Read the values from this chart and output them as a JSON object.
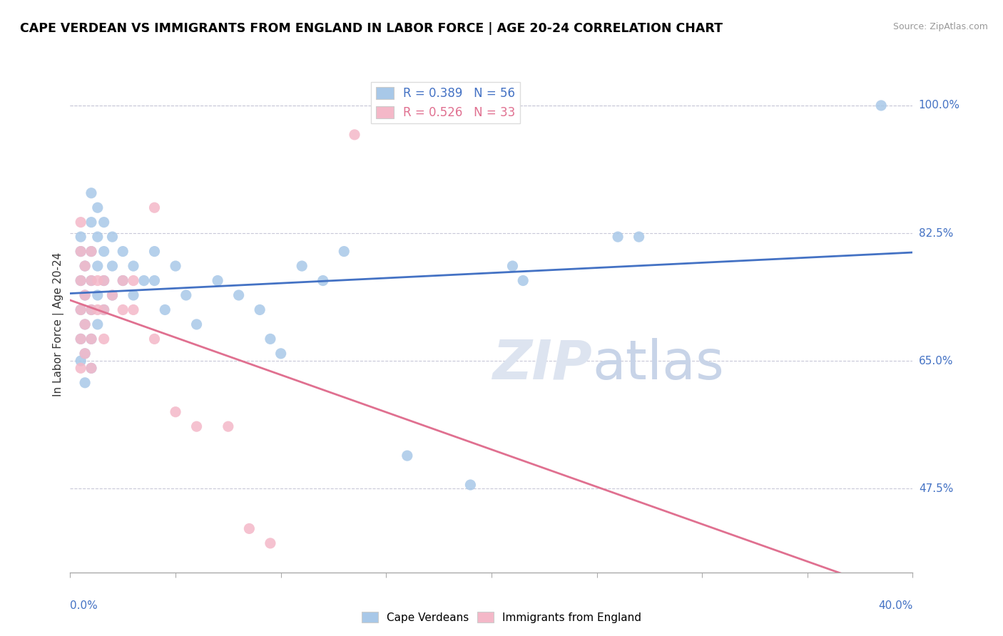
{
  "title": "CAPE VERDEAN VS IMMIGRANTS FROM ENGLAND IN LABOR FORCE | AGE 20-24 CORRELATION CHART",
  "source": "Source: ZipAtlas.com",
  "ylabel": "In Labor Force | Age 20-24",
  "blue_color": "#a8c8e8",
  "pink_color": "#f4b8c8",
  "blue_line_color": "#4472c4",
  "pink_line_color": "#e07090",
  "xlim": [
    0.0,
    0.4
  ],
  "ylim": [
    0.36,
    1.04
  ],
  "ytick_vals": [
    0.475,
    0.65,
    0.825,
    1.0
  ],
  "ytick_top": 1.0,
  "ytick_labels": [
    "47.5%",
    "65.0%",
    "82.5%",
    "100.0%"
  ],
  "xtick_count": 9,
  "blue_R": 0.389,
  "blue_N": 56,
  "pink_R": 0.526,
  "pink_N": 33,
  "watermark_text": "ZIP",
  "watermark_text2": "atlas",
  "blue_scatter": [
    [
      0.005,
      0.76
    ],
    [
      0.005,
      0.8
    ],
    [
      0.005,
      0.72
    ],
    [
      0.005,
      0.68
    ],
    [
      0.005,
      0.65
    ],
    [
      0.005,
      0.82
    ],
    [
      0.007,
      0.78
    ],
    [
      0.007,
      0.74
    ],
    [
      0.007,
      0.7
    ],
    [
      0.007,
      0.66
    ],
    [
      0.007,
      0.62
    ],
    [
      0.01,
      0.88
    ],
    [
      0.01,
      0.84
    ],
    [
      0.01,
      0.8
    ],
    [
      0.01,
      0.76
    ],
    [
      0.01,
      0.72
    ],
    [
      0.01,
      0.68
    ],
    [
      0.01,
      0.64
    ],
    [
      0.013,
      0.86
    ],
    [
      0.013,
      0.82
    ],
    [
      0.013,
      0.78
    ],
    [
      0.013,
      0.74
    ],
    [
      0.013,
      0.7
    ],
    [
      0.016,
      0.84
    ],
    [
      0.016,
      0.8
    ],
    [
      0.016,
      0.76
    ],
    [
      0.016,
      0.72
    ],
    [
      0.02,
      0.82
    ],
    [
      0.02,
      0.78
    ],
    [
      0.02,
      0.74
    ],
    [
      0.025,
      0.8
    ],
    [
      0.025,
      0.76
    ],
    [
      0.03,
      0.78
    ],
    [
      0.03,
      0.74
    ],
    [
      0.035,
      0.76
    ],
    [
      0.04,
      0.8
    ],
    [
      0.04,
      0.76
    ],
    [
      0.045,
      0.72
    ],
    [
      0.05,
      0.78
    ],
    [
      0.055,
      0.74
    ],
    [
      0.06,
      0.7
    ],
    [
      0.07,
      0.76
    ],
    [
      0.08,
      0.74
    ],
    [
      0.09,
      0.72
    ],
    [
      0.095,
      0.68
    ],
    [
      0.1,
      0.66
    ],
    [
      0.11,
      0.78
    ],
    [
      0.12,
      0.76
    ],
    [
      0.13,
      0.8
    ],
    [
      0.16,
      0.52
    ],
    [
      0.19,
      0.48
    ],
    [
      0.21,
      0.78
    ],
    [
      0.215,
      0.76
    ],
    [
      0.26,
      0.82
    ],
    [
      0.27,
      0.82
    ],
    [
      0.385,
      1.0
    ]
  ],
  "pink_scatter": [
    [
      0.005,
      0.84
    ],
    [
      0.005,
      0.8
    ],
    [
      0.005,
      0.76
    ],
    [
      0.005,
      0.72
    ],
    [
      0.005,
      0.68
    ],
    [
      0.005,
      0.64
    ],
    [
      0.007,
      0.78
    ],
    [
      0.007,
      0.74
    ],
    [
      0.007,
      0.7
    ],
    [
      0.007,
      0.66
    ],
    [
      0.01,
      0.8
    ],
    [
      0.01,
      0.76
    ],
    [
      0.01,
      0.72
    ],
    [
      0.01,
      0.68
    ],
    [
      0.01,
      0.64
    ],
    [
      0.013,
      0.76
    ],
    [
      0.013,
      0.72
    ],
    [
      0.016,
      0.76
    ],
    [
      0.016,
      0.72
    ],
    [
      0.016,
      0.68
    ],
    [
      0.02,
      0.74
    ],
    [
      0.025,
      0.76
    ],
    [
      0.025,
      0.72
    ],
    [
      0.03,
      0.76
    ],
    [
      0.03,
      0.72
    ],
    [
      0.04,
      0.86
    ],
    [
      0.04,
      0.68
    ],
    [
      0.05,
      0.58
    ],
    [
      0.06,
      0.56
    ],
    [
      0.075,
      0.56
    ],
    [
      0.085,
      0.42
    ],
    [
      0.095,
      0.4
    ],
    [
      0.135,
      0.96
    ]
  ]
}
